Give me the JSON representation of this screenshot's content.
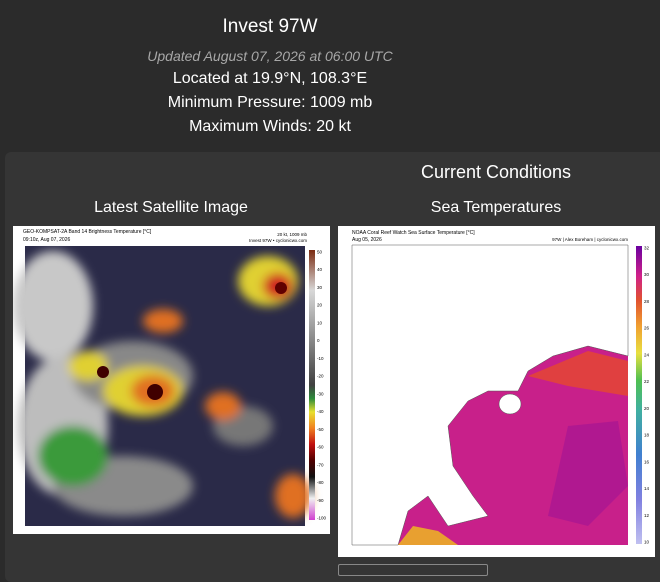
{
  "header": {
    "title": "Invest 97W",
    "updated": "Updated August 07, 2026 at 06:00 UTC",
    "location": "Located at 19.9°N, 108.3°E",
    "pressure": "Minimum Pressure: 1009 mb",
    "winds": "Maximum Winds: 20 kt"
  },
  "current_conditions": {
    "title": "Current Conditions"
  },
  "satellite": {
    "title": "Latest Satellite Image",
    "image_title": "GEO-KOMPSAT-2A Band 14 Brightness Temperature [°C]",
    "image_time": "09:10z, Aug 07, 2026",
    "image_info": "20 kt, 1009 mb",
    "image_credit": "Invest 97W • cyclonicwx.com",
    "colorbar": [
      "50",
      "40",
      "30",
      "20",
      "10",
      "0",
      "-10",
      "-20",
      "-30",
      "-40",
      "-50",
      "-60",
      "-70",
      "-80",
      "-90",
      "-100"
    ]
  },
  "sea_temperatures": {
    "title": "Sea Temperatures",
    "image_title": "NOAA Coral Reef Watch Sea Surface Temperature [°C]",
    "image_time": "Aug 05, 2026",
    "image_credit": "97W | Alex Boreham | cyclonicwx.com",
    "colorbar": [
      "32",
      "30",
      "28",
      "26",
      "24",
      "22",
      "20",
      "18",
      "16",
      "14",
      "12",
      "10"
    ]
  }
}
